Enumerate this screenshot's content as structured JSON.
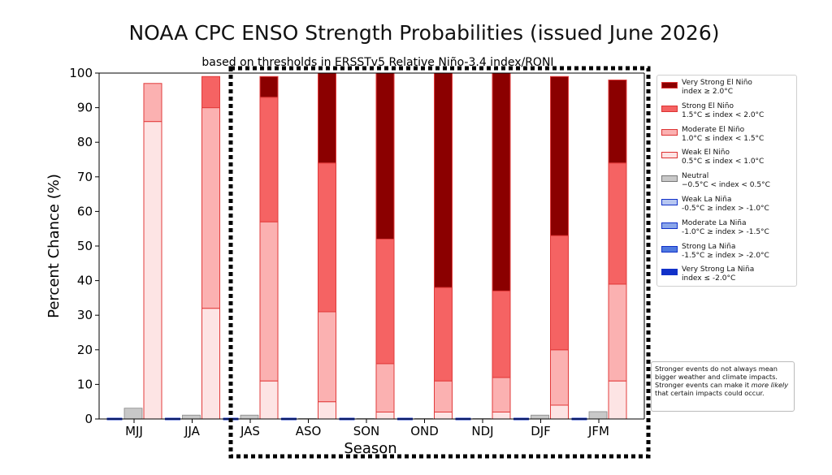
{
  "chart_data": {
    "type": "bar",
    "stacked": true,
    "title": "NOAA CPC ENSO Strength Probabilities (issued June 2026)",
    "subtitle": "based on thresholds in ERSSTv5 Relative Niño-3.4 index/RONI",
    "xlabel": "Season",
    "ylabel": "Percent Chance (%)",
    "ylim": [
      0,
      100
    ],
    "yticks": [
      "0",
      "10",
      "20",
      "30",
      "40",
      "50",
      "60",
      "70",
      "80",
      "90",
      "100"
    ],
    "categories": [
      "MJJ",
      "JJA",
      "JAS",
      "ASO",
      "SON",
      "OND",
      "NDJ",
      "DJF",
      "JFM"
    ],
    "highlight_box": {
      "categories": [
        "JAS",
        "ASO",
        "SON",
        "OND",
        "NDJ",
        "DJF",
        "JFM"
      ],
      "style": "dotted"
    },
    "neutral_series": {
      "name": "Neutral",
      "values": [
        3,
        1,
        1,
        0,
        0,
        0,
        0,
        1,
        2
      ],
      "color": "#c8c8c8"
    },
    "la_nina_series": [
      {
        "name": "Weak La Niña",
        "values": [
          0,
          0,
          0,
          0,
          0,
          0,
          0,
          0,
          0
        ],
        "color": "#b7c7f1"
      },
      {
        "name": "Moderate La Niña",
        "values": [
          0,
          0,
          0,
          0,
          0,
          0,
          0,
          0,
          0
        ],
        "color": "#8aa6ea"
      },
      {
        "name": "Strong La Niña",
        "values": [
          0,
          0,
          0,
          0,
          0,
          0,
          0,
          0,
          0
        ],
        "color": "#4f79e0"
      },
      {
        "name": "Very Strong La Niña",
        "values": [
          0,
          0,
          0,
          0,
          0,
          0,
          0,
          0,
          0
        ],
        "color": "#1131c9"
      }
    ],
    "el_nino_series": [
      {
        "name": "Weak El Niño",
        "values": [
          86,
          32,
          11,
          5,
          2,
          2,
          2,
          4,
          11
        ],
        "color": "#fde4e4"
      },
      {
        "name": "Moderate El Niño",
        "values": [
          11,
          58,
          46,
          26,
          14,
          9,
          10,
          16,
          28
        ],
        "color": "#fbb1b1"
      },
      {
        "name": "Strong El Niño",
        "values": [
          0,
          9,
          36,
          43,
          36,
          27,
          25,
          33,
          35
        ],
        "color": "#f56363"
      },
      {
        "name": "Very Strong El Niño",
        "values": [
          0,
          0,
          6,
          26,
          48,
          62,
          63,
          46,
          24
        ],
        "color": "#8b0000"
      }
    ]
  },
  "legend": [
    {
      "label": "Very Strong El Niño\nindex ≥ 2.0°C",
      "color": "#8b0000"
    },
    {
      "label": "Strong El Niño\n1.5°C ≤ index < 2.0°C",
      "color": "#f56363"
    },
    {
      "label": "Moderate El Niño\n1.0°C ≤ index < 1.5°C",
      "color": "#fbb1b1"
    },
    {
      "label": "Weak El Niño\n0.5°C ≤ index < 1.0°C",
      "color": "#fde4e4"
    },
    {
      "label": "Neutral\n−0.5°C < index < 0.5°C",
      "color": "#c8c8c8"
    },
    {
      "label": "Weak La Niña\n-0.5°C ≥ index > -1.0°C",
      "color": "#b7c7f1"
    },
    {
      "label": "Moderate La Niña\n-1.0°C ≥ index > -1.5°C",
      "color": "#8aa6ea"
    },
    {
      "label": "Strong La Niña\n-1.5°C ≥ index > -2.0°C",
      "color": "#4f79e0"
    },
    {
      "label": "Very Strong La Niña\nindex ≤ -2.0°C",
      "color": "#1131c9"
    }
  ],
  "note": {
    "before": "Stronger events do not always mean bigger weather and climate impacts. Stronger events can make it ",
    "emphasis": "more likely",
    "after": " that certain impacts could occur."
  }
}
